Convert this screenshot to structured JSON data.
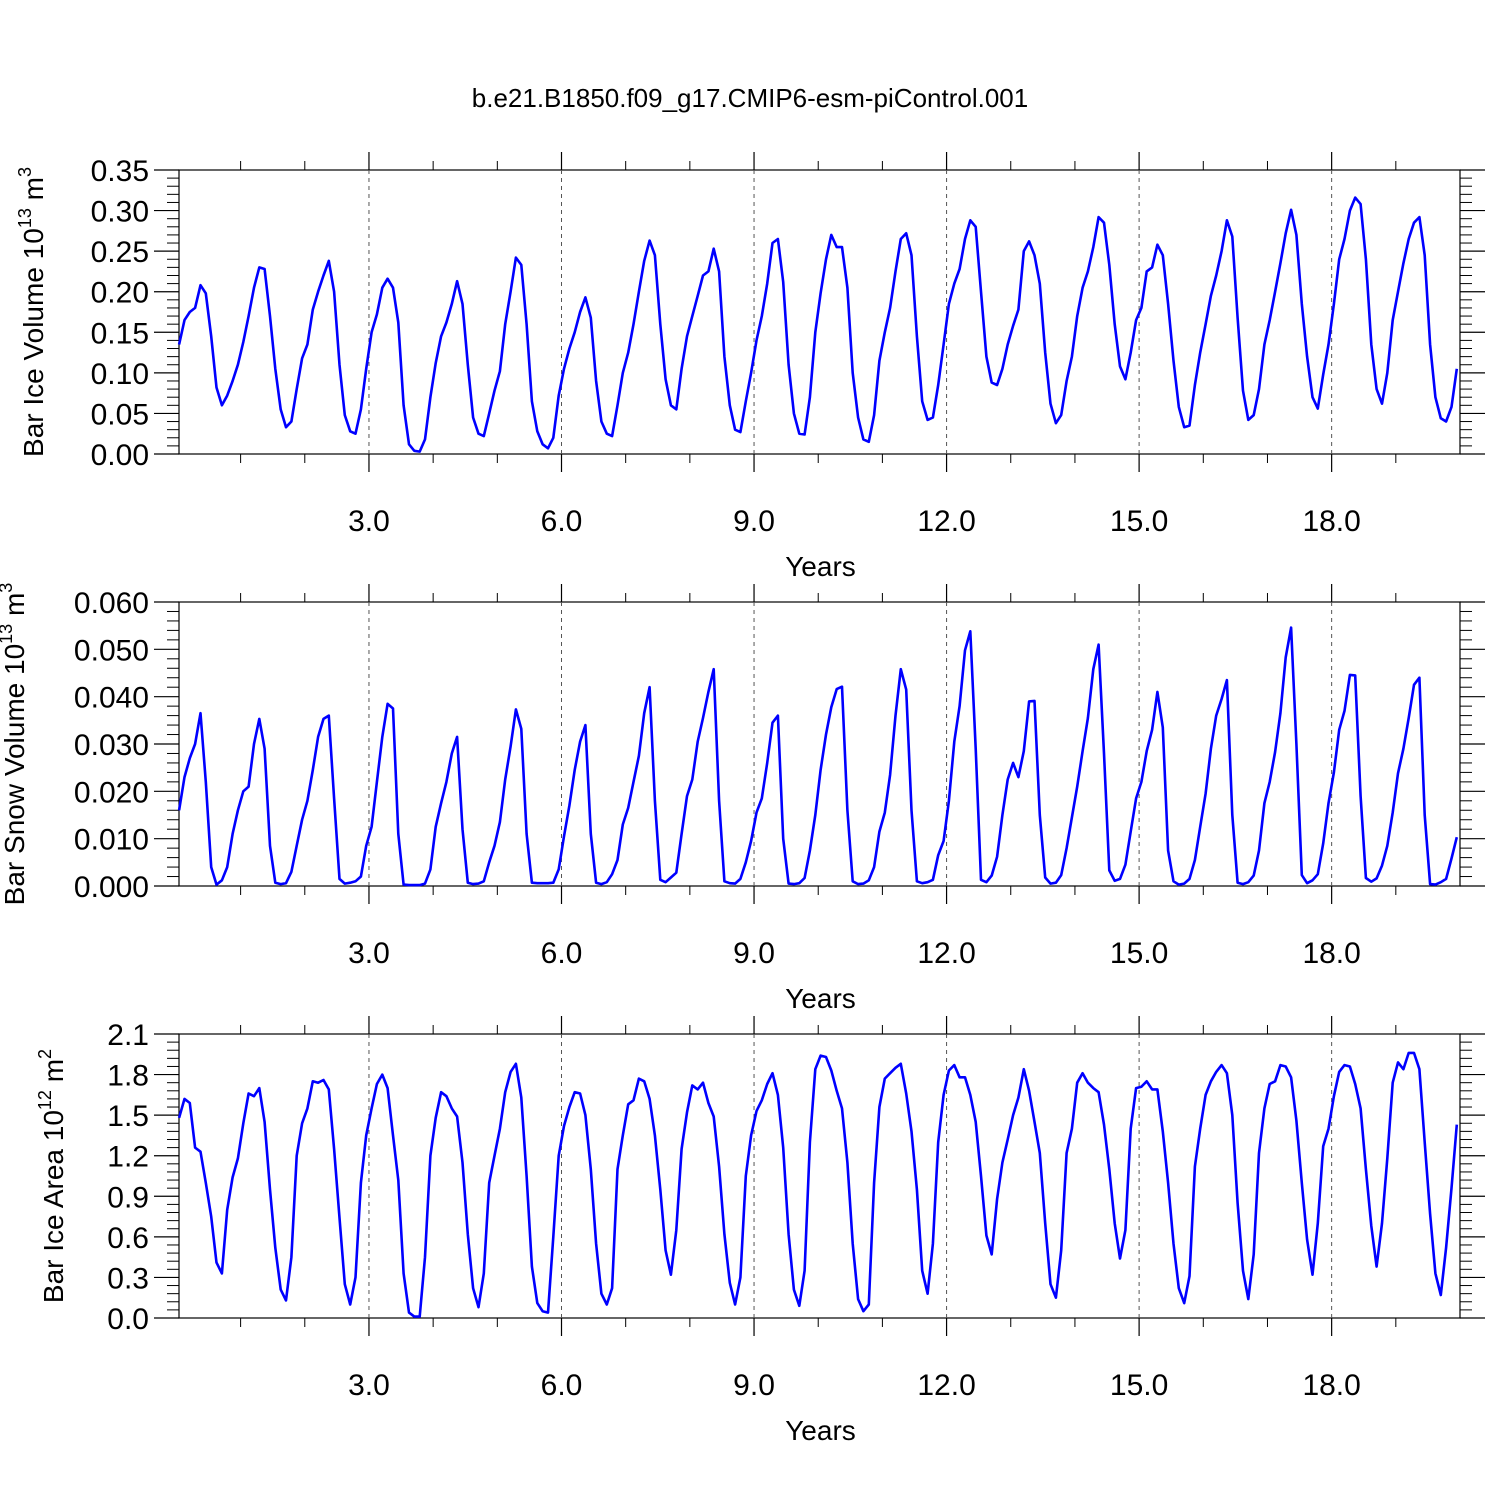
{
  "title": "b.e21.B1850.f09_g17.CMIP6-esm-piControl.001",
  "line_color": "#0000ff",
  "chart_data": [
    {
      "type": "line",
      "xlabel": "Years",
      "ylabel_main": "Bar Ice Volume 10",
      "ylabel_exp1": "13",
      "ylabel_mid": " m",
      "ylabel_exp2": "3",
      "xlim": [
        0.04,
        20.0
      ],
      "ylim": [
        0.0,
        0.35
      ],
      "x_ticks": [
        3.0,
        6.0,
        9.0,
        12.0,
        15.0,
        18.0
      ],
      "x_tick_labels": [
        "3.0",
        "6.0",
        "9.0",
        "12.0",
        "15.0",
        "18.0"
      ],
      "y_ticks": [
        0.0,
        0.05,
        0.1,
        0.15,
        0.2,
        0.25,
        0.3,
        0.35
      ],
      "y_tick_labels": [
        "0.00",
        "0.05",
        "0.10",
        "0.15",
        "0.20",
        "0.25",
        "0.30",
        "0.35"
      ],
      "series": [
        {
          "x_start": 0.0417,
          "x_step": 0.0833,
          "values": [
            0.135,
            0.165,
            0.175,
            0.18,
            0.208,
            0.198,
            0.145,
            0.082,
            0.06,
            0.072,
            0.09,
            0.11,
            0.138,
            0.17,
            0.205,
            0.23,
            0.228,
            0.17,
            0.105,
            0.055,
            0.033,
            0.04,
            0.08,
            0.118,
            0.135,
            0.178,
            0.2,
            0.22,
            0.238,
            0.2,
            0.11,
            0.048,
            0.028,
            0.025,
            0.055,
            0.105,
            0.15,
            0.172,
            0.205,
            0.216,
            0.205,
            0.162,
            0.06,
            0.012,
            0.004,
            0.003,
            0.018,
            0.07,
            0.112,
            0.145,
            0.162,
            0.185,
            0.213,
            0.185,
            0.11,
            0.045,
            0.025,
            0.022,
            0.05,
            0.078,
            0.102,
            0.16,
            0.2,
            0.242,
            0.233,
            0.16,
            0.065,
            0.028,
            0.012,
            0.007,
            0.02,
            0.072,
            0.105,
            0.13,
            0.15,
            0.175,
            0.193,
            0.168,
            0.09,
            0.04,
            0.025,
            0.022,
            0.06,
            0.1,
            0.125,
            0.16,
            0.2,
            0.238,
            0.263,
            0.245,
            0.16,
            0.092,
            0.06,
            0.055,
            0.105,
            0.145,
            0.17,
            0.195,
            0.22,
            0.225,
            0.253,
            0.225,
            0.12,
            0.06,
            0.03,
            0.027,
            0.065,
            0.1,
            0.14,
            0.17,
            0.21,
            0.26,
            0.265,
            0.212,
            0.11,
            0.05,
            0.025,
            0.024,
            0.07,
            0.15,
            0.198,
            0.24,
            0.27,
            0.255,
            0.255,
            0.205,
            0.1,
            0.045,
            0.018,
            0.015,
            0.048,
            0.115,
            0.15,
            0.18,
            0.225,
            0.265,
            0.272,
            0.245,
            0.145,
            0.065,
            0.042,
            0.045,
            0.085,
            0.135,
            0.185,
            0.21,
            0.228,
            0.265,
            0.288,
            0.28,
            0.2,
            0.12,
            0.088,
            0.085,
            0.105,
            0.135,
            0.158,
            0.178,
            0.25,
            0.262,
            0.245,
            0.21,
            0.125,
            0.062,
            0.038,
            0.048,
            0.09,
            0.12,
            0.17,
            0.205,
            0.225,
            0.255,
            0.292,
            0.285,
            0.233,
            0.16,
            0.108,
            0.092,
            0.125,
            0.165,
            0.18,
            0.225,
            0.23,
            0.258,
            0.245,
            0.185,
            0.115,
            0.058,
            0.033,
            0.035,
            0.085,
            0.125,
            0.16,
            0.195,
            0.22,
            0.25,
            0.288,
            0.268,
            0.168,
            0.078,
            0.042,
            0.048,
            0.08,
            0.135,
            0.165,
            0.2,
            0.235,
            0.272,
            0.301,
            0.27,
            0.185,
            0.12,
            0.07,
            0.056,
            0.098,
            0.135,
            0.185,
            0.24,
            0.265,
            0.3,
            0.316,
            0.308,
            0.24,
            0.135,
            0.08,
            0.062,
            0.1,
            0.165,
            0.2,
            0.235,
            0.265,
            0.285,
            0.292,
            0.245,
            0.135,
            0.07,
            0.044,
            0.04,
            0.058,
            0.105
          ]
        }
      ]
    },
    {
      "type": "line",
      "xlabel": "Years",
      "ylabel_main": "Bar Snow Volume 10",
      "ylabel_exp1": "13",
      "ylabel_mid": " m",
      "ylabel_exp2": "3",
      "xlim": [
        0.04,
        20.0
      ],
      "ylim": [
        0.0,
        0.06
      ],
      "x_ticks": [
        3.0,
        6.0,
        9.0,
        12.0,
        15.0,
        18.0
      ],
      "x_tick_labels": [
        "3.0",
        "6.0",
        "9.0",
        "12.0",
        "15.0",
        "18.0"
      ],
      "y_ticks": [
        0.0,
        0.01,
        0.02,
        0.03,
        0.04,
        0.05,
        0.06
      ],
      "y_tick_labels": [
        "0.000",
        "0.010",
        "0.020",
        "0.030",
        "0.040",
        "0.050",
        "0.060"
      ],
      "series": [
        {
          "x_start": 0.0417,
          "x_step": 0.0833,
          "values": [
            0.016,
            0.023,
            0.027,
            0.03,
            0.0365,
            0.022,
            0.004,
            0.0003,
            0.0012,
            0.004,
            0.011,
            0.016,
            0.02,
            0.021,
            0.03,
            0.0353,
            0.029,
            0.0085,
            0.0007,
            0.0004,
            0.0006,
            0.003,
            0.0085,
            0.014,
            0.018,
            0.0245,
            0.0315,
            0.0353,
            0.036,
            0.0185,
            0.0015,
            0.0005,
            0.0007,
            0.001,
            0.002,
            0.0085,
            0.0125,
            0.022,
            0.0315,
            0.0385,
            0.0375,
            0.011,
            0.0003,
            0.0002,
            0.0002,
            0.0002,
            0.0005,
            0.0035,
            0.0125,
            0.0175,
            0.022,
            0.028,
            0.0315,
            0.012,
            0.0007,
            0.0004,
            0.0005,
            0.001,
            0.005,
            0.0085,
            0.0135,
            0.0225,
            0.0295,
            0.0373,
            0.0332,
            0.011,
            0.0007,
            0.0006,
            0.0006,
            0.0006,
            0.0007,
            0.0035,
            0.0105,
            0.017,
            0.0245,
            0.0305,
            0.034,
            0.011,
            0.0007,
            0.0004,
            0.0008,
            0.0025,
            0.0055,
            0.013,
            0.0165,
            0.022,
            0.0275,
            0.0365,
            0.042,
            0.018,
            0.0013,
            0.0008,
            0.0018,
            0.0028,
            0.011,
            0.019,
            0.0225,
            0.0305,
            0.0355,
            0.041,
            0.0458,
            0.018,
            0.001,
            0.0006,
            0.0005,
            0.0015,
            0.005,
            0.0095,
            0.0155,
            0.0185,
            0.026,
            0.0345,
            0.036,
            0.01,
            0.0005,
            0.0004,
            0.0006,
            0.0017,
            0.0075,
            0.015,
            0.0245,
            0.032,
            0.0378,
            0.0416,
            0.0421,
            0.016,
            0.001,
            0.0004,
            0.0005,
            0.0012,
            0.004,
            0.0115,
            0.0155,
            0.0235,
            0.036,
            0.0458,
            0.0415,
            0.016,
            0.001,
            0.0006,
            0.0008,
            0.0013,
            0.0065,
            0.0095,
            0.018,
            0.0305,
            0.038,
            0.0498,
            0.0538,
            0.029,
            0.0013,
            0.0008,
            0.0022,
            0.0062,
            0.015,
            0.0225,
            0.026,
            0.023,
            0.0285,
            0.039,
            0.0391,
            0.015,
            0.0018,
            0.0005,
            0.0007,
            0.0023,
            0.008,
            0.0145,
            0.021,
            0.0285,
            0.0355,
            0.0458,
            0.051,
            0.028,
            0.0033,
            0.0011,
            0.0015,
            0.0045,
            0.0115,
            0.0185,
            0.022,
            0.0285,
            0.033,
            0.041,
            0.0335,
            0.0075,
            0.001,
            0.0003,
            0.0005,
            0.0015,
            0.0055,
            0.0125,
            0.0195,
            0.029,
            0.036,
            0.0395,
            0.0435,
            0.015,
            0.0007,
            0.0004,
            0.0008,
            0.0022,
            0.0075,
            0.0175,
            0.022,
            0.0283,
            0.0365,
            0.0483,
            0.0546,
            0.03,
            0.0023,
            0.0006,
            0.0012,
            0.0025,
            0.009,
            0.0175,
            0.024,
            0.033,
            0.037,
            0.0446,
            0.0445,
            0.019,
            0.0017,
            0.0009,
            0.0016,
            0.0043,
            0.0085,
            0.0155,
            0.0238,
            0.029,
            0.0355,
            0.0425,
            0.044,
            0.015,
            0.0004,
            0.0003,
            0.0008,
            0.0015,
            0.0058,
            0.0103
          ]
        }
      ]
    },
    {
      "type": "line",
      "xlabel": "Years",
      "ylabel_main": "Bar Ice Area 10",
      "ylabel_exp1": "12",
      "ylabel_mid": " m",
      "ylabel_exp2": "2",
      "xlim": [
        0.04,
        20.0
      ],
      "ylim": [
        0.0,
        2.1
      ],
      "x_ticks": [
        3.0,
        6.0,
        9.0,
        12.0,
        15.0,
        18.0
      ],
      "x_tick_labels": [
        "3.0",
        "6.0",
        "9.0",
        "12.0",
        "15.0",
        "18.0"
      ],
      "y_ticks": [
        0.0,
        0.3,
        0.6,
        0.9,
        1.2,
        1.5,
        1.8,
        2.1
      ],
      "y_tick_labels": [
        "0.0",
        "0.3",
        "0.6",
        "0.9",
        "1.2",
        "1.5",
        "1.8",
        "2.1"
      ],
      "series": [
        {
          "x_start": 0.0417,
          "x_step": 0.0833,
          "values": [
            1.48,
            1.62,
            1.59,
            1.26,
            1.23,
            1.0,
            0.75,
            0.41,
            0.33,
            0.8,
            1.04,
            1.18,
            1.44,
            1.66,
            1.64,
            1.7,
            1.45,
            0.95,
            0.52,
            0.21,
            0.13,
            0.45,
            1.2,
            1.44,
            1.55,
            1.75,
            1.74,
            1.76,
            1.69,
            1.25,
            0.74,
            0.25,
            0.1,
            0.3,
            1.0,
            1.35,
            1.55,
            1.73,
            1.8,
            1.7,
            1.35,
            1.02,
            0.33,
            0.04,
            0.01,
            0.01,
            0.45,
            1.2,
            1.48,
            1.67,
            1.64,
            1.55,
            1.49,
            1.15,
            0.62,
            0.22,
            0.08,
            0.33,
            1.0,
            1.2,
            1.4,
            1.67,
            1.82,
            1.88,
            1.63,
            1.05,
            0.38,
            0.11,
            0.05,
            0.04,
            0.6,
            1.2,
            1.42,
            1.56,
            1.67,
            1.66,
            1.5,
            1.1,
            0.55,
            0.18,
            0.1,
            0.22,
            1.1,
            1.35,
            1.58,
            1.61,
            1.77,
            1.75,
            1.62,
            1.35,
            0.95,
            0.5,
            0.32,
            0.65,
            1.25,
            1.52,
            1.72,
            1.69,
            1.74,
            1.59,
            1.49,
            1.12,
            0.62,
            0.26,
            0.1,
            0.3,
            1.05,
            1.35,
            1.53,
            1.61,
            1.73,
            1.81,
            1.65,
            1.26,
            0.62,
            0.21,
            0.09,
            0.35,
            1.3,
            1.84,
            1.94,
            1.93,
            1.83,
            1.68,
            1.55,
            1.15,
            0.55,
            0.14,
            0.05,
            0.1,
            1.0,
            1.56,
            1.77,
            1.81,
            1.85,
            1.88,
            1.66,
            1.38,
            0.95,
            0.35,
            0.18,
            0.55,
            1.3,
            1.65,
            1.83,
            1.87,
            1.78,
            1.78,
            1.65,
            1.45,
            1.05,
            0.61,
            0.47,
            0.88,
            1.15,
            1.32,
            1.5,
            1.63,
            1.84,
            1.68,
            1.45,
            1.22,
            0.7,
            0.25,
            0.15,
            0.5,
            1.22,
            1.4,
            1.74,
            1.81,
            1.74,
            1.7,
            1.67,
            1.43,
            1.1,
            0.7,
            0.44,
            0.65,
            1.4,
            1.7,
            1.71,
            1.75,
            1.69,
            1.69,
            1.38,
            1.0,
            0.55,
            0.22,
            0.11,
            0.31,
            1.12,
            1.4,
            1.65,
            1.75,
            1.82,
            1.87,
            1.81,
            1.5,
            0.85,
            0.35,
            0.14,
            0.47,
            1.22,
            1.55,
            1.73,
            1.75,
            1.87,
            1.86,
            1.78,
            1.46,
            1.0,
            0.58,
            0.32,
            0.7,
            1.27,
            1.4,
            1.64,
            1.82,
            1.87,
            1.86,
            1.73,
            1.55,
            1.1,
            0.68,
            0.38,
            0.7,
            1.18,
            1.74,
            1.89,
            1.84,
            1.96,
            1.96,
            1.84,
            1.3,
            0.77,
            0.33,
            0.17,
            0.52,
            0.96,
            1.43
          ]
        }
      ]
    }
  ]
}
